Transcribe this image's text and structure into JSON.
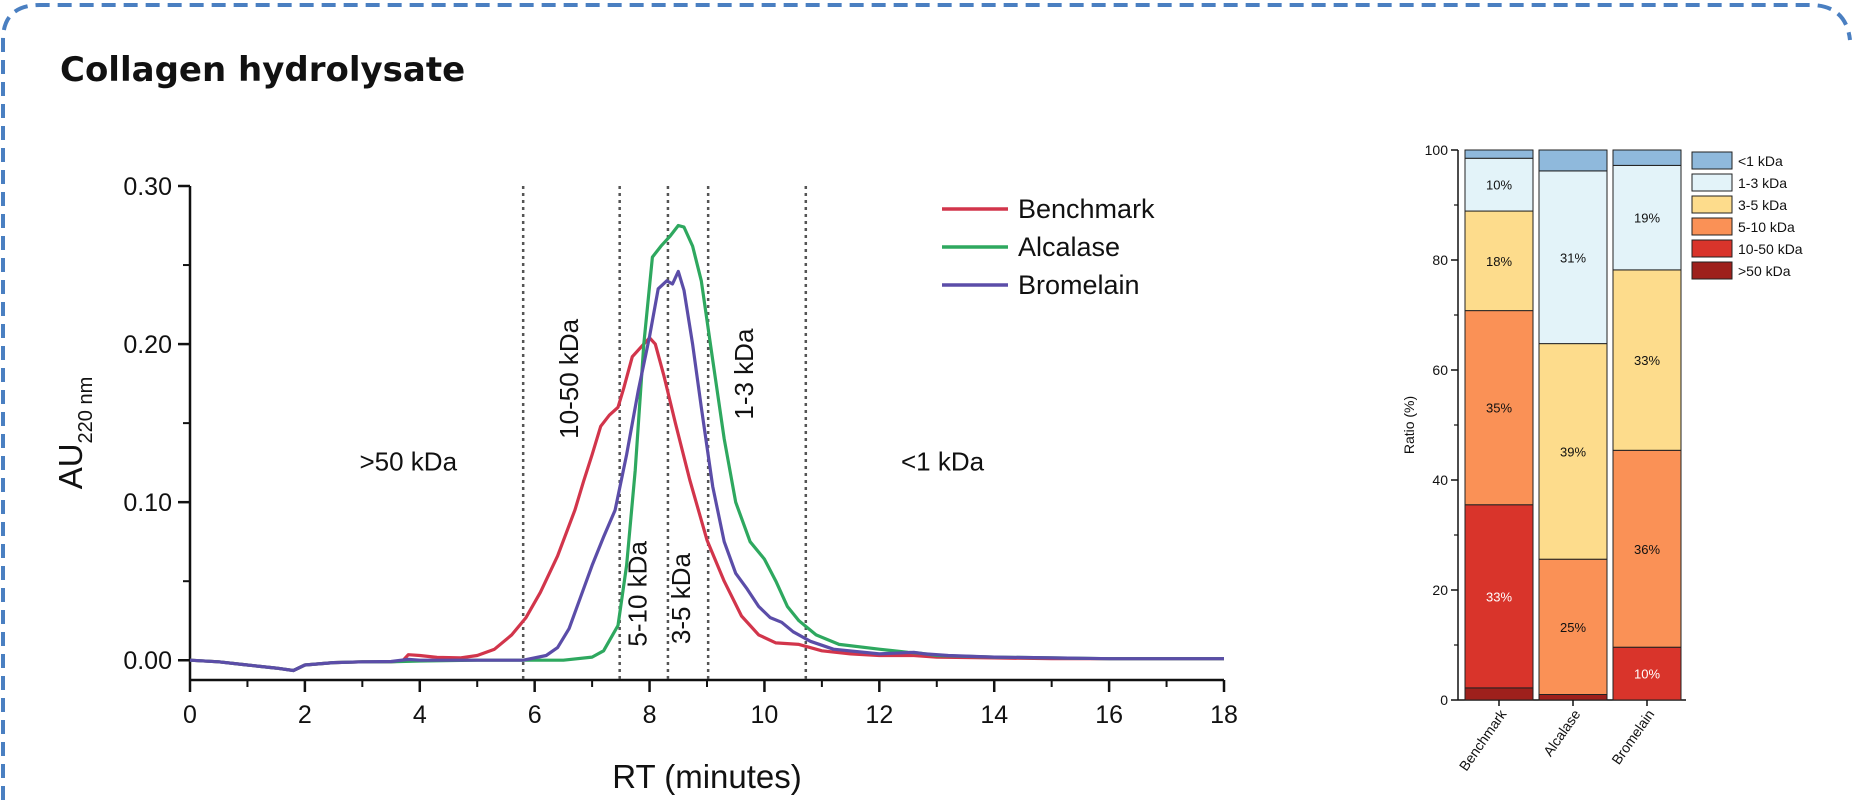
{
  "panel": {
    "title": "Collagen hydrolysate"
  },
  "colors": {
    "frame_border": "#4a7fc1",
    "Benchmark": "#d2354b",
    "Alcalase": "#2ea85f",
    "Bromelain": "#5b4da8",
    "<1 kDa": "#8fb9dc",
    "1-3 kDa": "#e3f3f9",
    "3-5 kDa": "#fddc8c",
    "5-10 kDa": "#fa9156",
    "10-50 kDa": "#d9342b",
    ">50 kDa": "#9e201c"
  },
  "chart_data": [
    {
      "type": "line",
      "xlabel": "RT (minutes)",
      "ylabel_main": "AU",
      "ylabel_sub": "220 nm",
      "xlim": [
        0,
        18
      ],
      "ylim": [
        -0.0125,
        0.3
      ],
      "x_ticks": [
        0,
        2,
        4,
        6,
        8,
        10,
        12,
        14,
        16,
        18
      ],
      "x_tick_labels": [
        "0",
        "2",
        "4",
        "6",
        "8",
        "10",
        "12",
        "14",
        "16",
        "18"
      ],
      "y_ticks": [
        0,
        0.1,
        0.2,
        0.3
      ],
      "y_tick_labels": [
        "0.00",
        "0.10",
        "0.20",
        "0.30"
      ],
      "legend_position": "top-right",
      "cutoffs": [
        5.8,
        7.48,
        8.32,
        9.02,
        10.72
      ],
      "regions": [
        {
          "label": ">50 kDa",
          "x": 3.8,
          "y": 0.12,
          "rotate": false
        },
        {
          "label": "10-50 kDa",
          "x": 6.75,
          "y": 0.178,
          "rotate": true
        },
        {
          "label": "5-10 kDa",
          "x": 7.95,
          "y": 0.042,
          "rotate": true
        },
        {
          "label": "3-5 kDa",
          "x": 8.7,
          "y": 0.039,
          "rotate": true
        },
        {
          "label": "1-3 kDa",
          "x": 9.8,
          "y": 0.181,
          "rotate": true
        },
        {
          "label": "<1 kDa",
          "x": 13.1,
          "y": 0.12,
          "rotate": false
        }
      ],
      "series": [
        {
          "name": "Benchmark",
          "x": [
            0,
            0.5,
            1,
            1.5,
            1.8,
            2.0,
            2.5,
            3,
            3.5,
            3.7,
            3.8,
            4,
            4.3,
            4.7,
            5,
            5.3,
            5.6,
            5.85,
            6.1,
            6.4,
            6.7,
            6.85,
            7.0,
            7.15,
            7.3,
            7.45,
            7.55,
            7.7,
            7.85,
            8.0,
            8.1,
            8.25,
            8.45,
            8.7,
            9.0,
            9.3,
            9.6,
            9.9,
            10.2,
            10.6,
            11,
            11.5,
            12,
            12.6,
            13,
            14,
            15,
            16,
            17,
            18
          ],
          "y": [
            0,
            -0.001,
            -0.003,
            -0.005,
            -0.0065,
            -0.003,
            -0.0015,
            -0.001,
            -0.001,
            -0.0005,
            0.0035,
            0.003,
            0.0018,
            0.0015,
            0.003,
            0.007,
            0.016,
            0.027,
            0.043,
            0.066,
            0.095,
            0.113,
            0.13,
            0.148,
            0.155,
            0.16,
            0.172,
            0.192,
            0.198,
            0.204,
            0.2,
            0.18,
            0.15,
            0.114,
            0.076,
            0.05,
            0.028,
            0.016,
            0.011,
            0.01,
            0.006,
            0.004,
            0.003,
            0.003,
            0.002,
            0.0015,
            0.001,
            0.001,
            0.001,
            0.001
          ]
        },
        {
          "name": "Alcalase",
          "x": [
            0,
            0.5,
            1,
            1.5,
            1.8,
            2.0,
            2.5,
            3,
            3.5,
            4,
            5,
            6,
            6.5,
            7.0,
            7.2,
            7.45,
            7.6,
            7.75,
            7.9,
            8.05,
            8.2,
            8.35,
            8.5,
            8.6,
            8.75,
            8.9,
            9.1,
            9.3,
            9.5,
            9.75,
            10.0,
            10.2,
            10.4,
            10.6,
            10.9,
            11.3,
            12,
            12.5,
            12.7,
            13,
            14,
            15,
            16,
            17,
            18
          ],
          "y": [
            0,
            -0.001,
            -0.003,
            -0.005,
            -0.0065,
            -0.003,
            -0.0015,
            -0.001,
            -0.001,
            -0.0005,
            0,
            0,
            0,
            0.002,
            0.006,
            0.022,
            0.06,
            0.12,
            0.2,
            0.255,
            0.262,
            0.268,
            0.275,
            0.274,
            0.262,
            0.24,
            0.19,
            0.14,
            0.1,
            0.075,
            0.064,
            0.05,
            0.034,
            0.025,
            0.016,
            0.01,
            0.007,
            0.005,
            0.0045,
            0.003,
            0.002,
            0.0015,
            0.001,
            0.001,
            0.001
          ]
        },
        {
          "name": "Bromelain",
          "x": [
            0,
            0.5,
            1,
            1.5,
            1.8,
            2.0,
            2.5,
            3,
            3.5,
            3.8,
            4.0,
            4.5,
            5,
            5.8,
            6.2,
            6.4,
            6.6,
            6.8,
            7.0,
            7.2,
            7.4,
            7.6,
            7.8,
            8.0,
            8.15,
            8.3,
            8.4,
            8.5,
            8.6,
            8.75,
            8.9,
            9.1,
            9.3,
            9.5,
            9.7,
            9.9,
            10.1,
            10.3,
            10.5,
            10.8,
            11.2,
            12,
            12.6,
            12.8,
            13.2,
            14,
            15,
            16,
            17,
            18
          ],
          "y": [
            0,
            -0.001,
            -0.003,
            -0.005,
            -0.0065,
            -0.003,
            -0.0015,
            -0.001,
            -0.0008,
            0.0005,
            0,
            0,
            0,
            0,
            0.003,
            0.008,
            0.02,
            0.04,
            0.06,
            0.078,
            0.095,
            0.13,
            0.17,
            0.205,
            0.235,
            0.24,
            0.238,
            0.246,
            0.234,
            0.2,
            0.16,
            0.11,
            0.075,
            0.055,
            0.045,
            0.034,
            0.027,
            0.024,
            0.018,
            0.012,
            0.007,
            0.004,
            0.005,
            0.004,
            0.003,
            0.002,
            0.0015,
            0.001,
            0.001,
            0.001
          ]
        }
      ]
    },
    {
      "type": "bar",
      "stacked": true,
      "ylabel": "Ratio (%)",
      "ylim": [
        0,
        100
      ],
      "y_ticks": [
        0,
        20,
        40,
        60,
        80,
        100
      ],
      "y_tick_labels": [
        "0",
        "20",
        "40",
        "60",
        "80",
        "100"
      ],
      "categories": [
        "Benchmark",
        "Alcalase",
        "Bromelain"
      ],
      "legend_position": "right",
      "series": [
        {
          "name": ">50 kDa",
          "values": [
            2.2,
            1.0,
            0
          ],
          "labels": [
            "",
            "",
            ""
          ],
          "label_color": "#111111"
        },
        {
          "name": "10-50 kDa",
          "values": [
            33.3,
            0,
            9.6
          ],
          "labels": [
            "33%",
            "",
            "10%"
          ],
          "label_color": "#ffffff"
        },
        {
          "name": "5-10 kDa",
          "values": [
            35.3,
            24.6,
            35.8
          ],
          "labels": [
            "35%",
            "25%",
            "36%"
          ],
          "label_color": "#111111"
        },
        {
          "name": "3-5 kDa",
          "values": [
            18.1,
            39.2,
            32.8
          ],
          "labels": [
            "18%",
            "39%",
            "33%"
          ],
          "label_color": "#111111"
        },
        {
          "name": "1-3 kDa",
          "values": [
            9.6,
            31.4,
            19.0
          ],
          "labels": [
            "10%",
            "31%",
            "19%"
          ],
          "label_color": "#111111"
        },
        {
          "name": "<1 kDa",
          "values": [
            1.5,
            3.8,
            2.8
          ],
          "labels": [
            "",
            "",
            ""
          ],
          "label_color": "#111111"
        }
      ],
      "legend_order": [
        "<1 kDa",
        "1-3 kDa",
        "3-5 kDa",
        "5-10 kDa",
        "10-50 kDa",
        ">50 kDa"
      ]
    }
  ]
}
